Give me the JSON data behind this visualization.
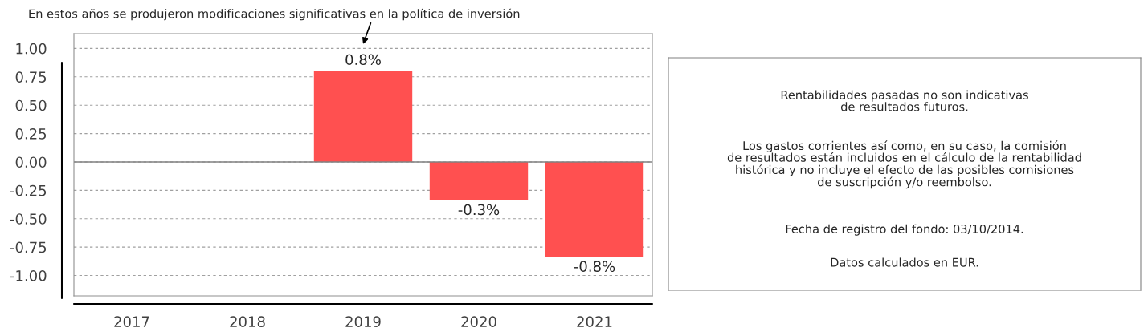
{
  "chart_data": [
    {
      "type": "bar",
      "categories": [
        "2017",
        "2018",
        "2019",
        "2020",
        "2021"
      ],
      "values": [
        null,
        null,
        0.8,
        -0.34,
        -0.84
      ],
      "color": "#ff5050",
      "value_labels": [
        null,
        null,
        "0.8%",
        "-0.3%",
        "-0.8%"
      ],
      "ylim": [
        -1.18,
        1.13
      ],
      "yticks": [
        {
          "value": 1,
          "label": "1.00"
        },
        {
          "value": 0.75,
          "label": "0.75"
        },
        {
          "value": 0.5,
          "label": "0.50"
        },
        {
          "value": 0.25,
          "label": "0.25"
        },
        {
          "value": 0,
          "label": "0.00"
        },
        {
          "value": -0.25,
          "label": "-0.25"
        },
        {
          "value": -0.5,
          "label": "-0.50"
        },
        {
          "value": -0.75,
          "label": "-0.75"
        },
        {
          "value": -1,
          "label": "-1.00"
        }
      ],
      "grid": "y",
      "annotations": [
        "En estos años se produjeron modificaciones significativas en la política de inversión"
      ]
    },
    {
      "type": "other",
      "annotations": [
        "Rentabilidades pasadas no son indicativas\nde resultados futuros.",
        "Los gastos corrientes así como, en su caso, la comisión\nde resultados están incluidos en el cálculo de la rentabilidad\nhistórica y no incluye el efecto de las posibles comisiones\nde suscripción y/o reembolso.",
        "Fecha de registro del fondo: 03/10/2014.",
        "Datos calculados en EUR."
      ]
    }
  ]
}
